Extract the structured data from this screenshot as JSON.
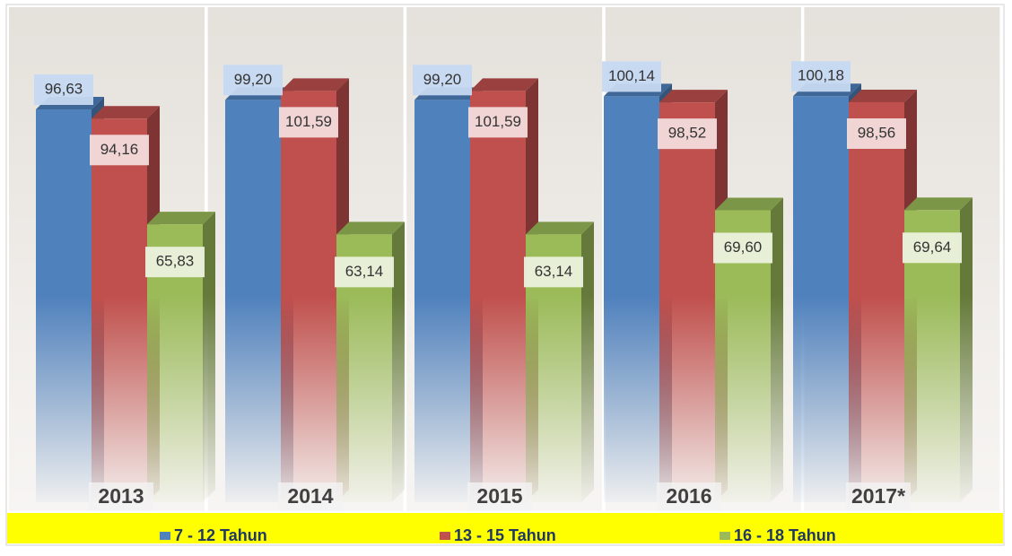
{
  "chart_data": {
    "type": "bar3d",
    "categories": [
      "2013",
      "2014",
      "2015",
      "2016",
      "2017*"
    ],
    "series": [
      {
        "name": "7 - 12 Tahun",
        "color": "#4f81bd",
        "values": [
          96.63,
          99.2,
          99.2,
          100.14,
          100.18
        ],
        "value_labels": [
          "96,63",
          "99,20",
          "99,20",
          "100,14",
          "100,18"
        ]
      },
      {
        "name": "13 - 15 Tahun",
        "color": "#c0504d",
        "values": [
          94.16,
          101.59,
          101.59,
          98.52,
          98.56
        ],
        "value_labels": [
          "94,16",
          "101,59",
          "101,59",
          "98,52",
          "98,56"
        ]
      },
      {
        "name": "16 - 18 Tahun",
        "color": "#9bbb59",
        "values": [
          65.83,
          63.14,
          63.14,
          69.6,
          69.64
        ],
        "value_labels": [
          "65,83",
          "63,14",
          "63,14",
          "69,60",
          "69,64"
        ]
      }
    ],
    "legend": "bottom"
  }
}
